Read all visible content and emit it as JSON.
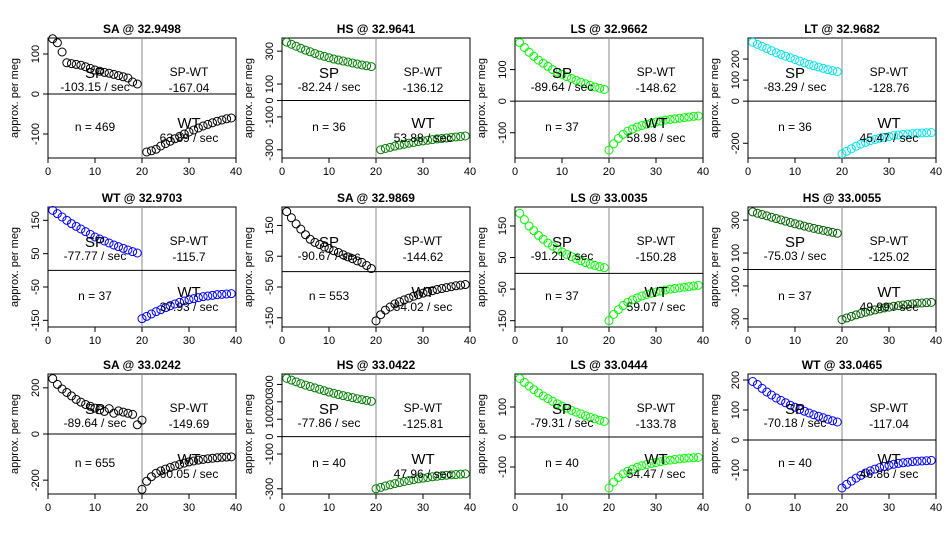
{
  "chart_data": [
    {
      "type": "scatter",
      "title": "SA @ 32.9498",
      "ylabel": "approx. per meg",
      "xlim": [
        0,
        40
      ],
      "ylim": [
        -160,
        140
      ],
      "yticks": [
        -100,
        0,
        100
      ],
      "xticks": [
        0,
        10,
        20,
        30,
        40
      ],
      "color": "#000000",
      "sp_label": "SP",
      "sp_rate": "-103.15 / sec",
      "spwt_label": "SP-WT",
      "spwt_value": "-167.04",
      "n_label": "n = 469",
      "wt_label": "WT",
      "wt_rate": "63.89 / sec",
      "sp_x": [
        1,
        2,
        3,
        4,
        5,
        6,
        7,
        8,
        9,
        10,
        11,
        12,
        13,
        14,
        15,
        16,
        17,
        18,
        19
      ],
      "sp_y": [
        138,
        128,
        105,
        78,
        76,
        74,
        72,
        68,
        64,
        60,
        57,
        54,
        52,
        49,
        46,
        43,
        40,
        30,
        25
      ],
      "wt_x": [
        21,
        22,
        23,
        24,
        25,
        26,
        27,
        28,
        29,
        30,
        31,
        32,
        33,
        34,
        35,
        36,
        37,
        38,
        39
      ],
      "wt_y": [
        -145,
        -142,
        -138,
        -130,
        -124,
        -118,
        -112,
        -106,
        -100,
        -95,
        -90,
        -85,
        -80,
        -76,
        -72,
        -68,
        -65,
        -62,
        -60
      ]
    },
    {
      "type": "scatter",
      "title": "HS @ 32.9641",
      "ylabel": "approx. per meg",
      "xlim": [
        0,
        40
      ],
      "ylim": [
        -350,
        380
      ],
      "yticks": [
        -300,
        -100,
        0,
        100,
        300
      ],
      "xticks": [
        0,
        10,
        20,
        30,
        40
      ],
      "color": "#008000",
      "sp_label": "SP",
      "sp_rate": "-82.24 / sec",
      "spwt_label": "SP-WT",
      "spwt_value": "-136.12",
      "n_label": "n = 36",
      "wt_label": "WT",
      "wt_rate": "53.88 / sec",
      "sp_x": [
        1,
        2,
        3,
        4,
        5,
        6,
        7,
        8,
        9,
        10,
        11,
        12,
        13,
        14,
        15,
        16,
        17,
        18,
        19
      ],
      "sp_y": [
        355,
        342,
        330,
        318,
        306,
        296,
        286,
        276,
        268,
        260,
        252,
        246,
        240,
        234,
        228,
        222,
        216,
        211,
        206
      ],
      "wt_x": [
        21,
        22,
        23,
        24,
        25,
        26,
        27,
        28,
        29,
        30,
        31,
        32,
        33,
        34,
        35,
        36,
        37,
        38,
        39
      ],
      "wt_y": [
        -300,
        -292,
        -285,
        -278,
        -272,
        -266,
        -260,
        -255,
        -250,
        -246,
        -242,
        -238,
        -234,
        -231,
        -228,
        -225,
        -222,
        -219,
        -216
      ]
    },
    {
      "type": "scatter",
      "title": "LS @ 32.9662",
      "ylabel": "approx. per meg",
      "xlim": [
        0,
        40
      ],
      "ylim": [
        -180,
        200
      ],
      "yticks": [
        -100,
        0,
        100
      ],
      "xticks": [
        0,
        10,
        20,
        30,
        40
      ],
      "color": "#00ff00",
      "sp_label": "SP",
      "sp_rate": "-89.64 / sec",
      "spwt_label": "SP-WT",
      "spwt_value": "-148.62",
      "n_label": "n = 37",
      "wt_label": "WT",
      "wt_rate": "58.98 / sec",
      "sp_x": [
        1,
        2,
        3,
        4,
        5,
        6,
        7,
        8,
        9,
        10,
        11,
        12,
        13,
        14,
        15,
        16,
        17,
        18,
        19
      ],
      "sp_y": [
        185,
        170,
        155,
        142,
        130,
        120,
        110,
        100,
        92,
        85,
        78,
        72,
        66,
        60,
        55,
        50,
        45,
        41,
        37
      ],
      "wt_x": [
        20,
        21,
        22,
        23,
        24,
        25,
        26,
        27,
        28,
        29,
        30,
        31,
        32,
        33,
        34,
        35,
        36,
        37,
        38,
        39
      ],
      "wt_y": [
        -155,
        -135,
        -118,
        -105,
        -95,
        -88,
        -82,
        -77,
        -73,
        -69,
        -66,
        -63,
        -60,
        -58,
        -56,
        -54,
        -52,
        -50,
        -48,
        -47
      ]
    },
    {
      "type": "scatter",
      "title": "LT @ 32.9682",
      "ylabel": "approx. per meg",
      "xlim": [
        0,
        40
      ],
      "ylim": [
        -270,
        300
      ],
      "yticks": [
        -200,
        0,
        100,
        200
      ],
      "xticks": [
        0,
        10,
        20,
        30,
        40
      ],
      "color": "#00e5ee",
      "sp_label": "SP",
      "sp_rate": "-83.29 / sec",
      "spwt_label": "SP-WT",
      "spwt_value": "-128.76",
      "n_label": "n = 36",
      "wt_label": "WT",
      "wt_rate": "45.47 / sec",
      "sp_x": [
        1,
        2,
        3,
        4,
        5,
        6,
        7,
        8,
        9,
        10,
        11,
        12,
        13,
        14,
        15,
        16,
        17,
        18,
        19
      ],
      "sp_y": [
        280,
        270,
        260,
        250,
        240,
        230,
        222,
        214,
        206,
        198,
        190,
        182,
        175,
        168,
        162,
        156,
        150,
        145,
        140
      ],
      "wt_x": [
        20,
        21,
        22,
        23,
        24,
        25,
        26,
        27,
        28,
        29,
        30,
        31,
        32,
        33,
        34,
        35,
        36,
        37,
        38,
        39
      ],
      "wt_y": [
        -250,
        -238,
        -226,
        -214,
        -204,
        -196,
        -188,
        -182,
        -176,
        -172,
        -168,
        -164,
        -161,
        -158,
        -156,
        -154,
        -152,
        -151,
        -150,
        -149
      ]
    },
    {
      "type": "scatter",
      "title": "WT @ 32.9703",
      "ylabel": "approx. per meg",
      "xlim": [
        0,
        40
      ],
      "ylim": [
        -170,
        190
      ],
      "yticks": [
        -150,
        -50,
        50,
        150
      ],
      "xticks": [
        0,
        10,
        20,
        30,
        40
      ],
      "color": "#0000ff",
      "sp_label": "SP",
      "sp_rate": "-77.77 / sec",
      "spwt_label": "SP-WT",
      "spwt_value": "-115.7",
      "n_label": "n = 37",
      "wt_label": "WT",
      "wt_rate": "37.93 / sec",
      "sp_x": [
        1,
        2,
        3,
        4,
        5,
        6,
        7,
        8,
        9,
        10,
        11,
        12,
        13,
        14,
        15,
        16,
        17,
        18,
        19
      ],
      "sp_y": [
        180,
        170,
        160,
        150,
        140,
        132,
        124,
        116,
        108,
        100,
        94,
        88,
        82,
        76,
        71,
        66,
        61,
        56,
        52
      ],
      "wt_x": [
        20,
        21,
        22,
        23,
        24,
        25,
        26,
        27,
        28,
        29,
        30,
        31,
        32,
        33,
        34,
        35,
        36,
        37,
        38,
        39
      ],
      "wt_y": [
        -145,
        -138,
        -131,
        -124,
        -118,
        -112,
        -106,
        -101,
        -96,
        -92,
        -88,
        -85,
        -82,
        -79,
        -77,
        -75,
        -73,
        -72,
        -71,
        -70
      ]
    },
    {
      "type": "scatter",
      "title": "SA @ 32.9869",
      "ylabel": "approx. per meg",
      "xlim": [
        0,
        40
      ],
      "ylim": [
        -180,
        210
      ],
      "yticks": [
        -150,
        -50,
        50,
        150
      ],
      "xticks": [
        0,
        10,
        20,
        30,
        40
      ],
      "color": "#000000",
      "sp_label": "SP",
      "sp_rate": "-90.67 / sec",
      "spwt_label": "SP-WT",
      "spwt_value": "-144.62",
      "n_label": "n = 553",
      "wt_label": "WT",
      "wt_rate": "54.02 / sec",
      "sp_x": [
        1,
        2,
        3,
        4,
        5,
        6,
        7,
        8,
        9,
        10,
        11,
        12,
        13,
        14,
        15,
        16,
        17,
        18,
        19
      ],
      "sp_y": [
        195,
        175,
        155,
        138,
        120,
        105,
        95,
        88,
        80,
        75,
        68,
        62,
        55,
        48,
        42,
        35,
        30,
        20,
        10
      ],
      "wt_x": [
        20,
        21,
        22,
        23,
        24,
        25,
        26,
        27,
        28,
        29,
        30,
        31,
        32,
        33,
        34,
        35,
        36,
        37,
        38,
        39
      ],
      "wt_y": [
        -160,
        -140,
        -125,
        -115,
        -105,
        -98,
        -92,
        -86,
        -80,
        -75,
        -70,
        -66,
        -62,
        -58,
        -55,
        -52,
        -49,
        -46,
        -44,
        -42
      ]
    },
    {
      "type": "scatter",
      "title": "LS @ 33.0035",
      "ylabel": "approx. per meg",
      "xlim": [
        0,
        40
      ],
      "ylim": [
        -170,
        210
      ],
      "yticks": [
        -150,
        -50,
        50,
        150
      ],
      "xticks": [
        0,
        10,
        20,
        30,
        40
      ],
      "color": "#00ff00",
      "sp_label": "SP",
      "sp_rate": "-91.21 / sec",
      "spwt_label": "SP-WT",
      "spwt_value": "-150.28",
      "n_label": "n = 37",
      "wt_label": "WT",
      "wt_rate": "59.07 / sec",
      "sp_x": [
        1,
        2,
        3,
        4,
        5,
        6,
        7,
        8,
        9,
        10,
        11,
        12,
        13,
        14,
        15,
        16,
        17,
        18,
        19
      ],
      "sp_y": [
        190,
        170,
        150,
        135,
        120,
        108,
        96,
        86,
        77,
        68,
        60,
        53,
        46,
        40,
        34,
        29,
        25,
        21,
        18
      ],
      "wt_x": [
        20,
        21,
        22,
        23,
        24,
        25,
        26,
        27,
        28,
        29,
        30,
        31,
        32,
        33,
        34,
        35,
        36,
        37,
        38,
        39
      ],
      "wt_y": [
        -150,
        -130,
        -115,
        -102,
        -92,
        -84,
        -78,
        -72,
        -67,
        -63,
        -59,
        -56,
        -53,
        -50,
        -48,
        -46,
        -44,
        -42,
        -40,
        -38
      ]
    },
    {
      "type": "scatter",
      "title": "HS @ 33.0055",
      "ylabel": "approx. per meg",
      "xlim": [
        0,
        40
      ],
      "ylim": [
        -350,
        380
      ],
      "yticks": [
        -300,
        -100,
        0,
        100,
        300
      ],
      "xticks": [
        0,
        10,
        20,
        30,
        40
      ],
      "color": "#006400",
      "sp_label": "SP",
      "sp_rate": "-75.03 / sec",
      "spwt_label": "SP-WT",
      "spwt_value": "-125.02",
      "n_label": "n = 37",
      "wt_label": "WT",
      "wt_rate": "49.99 / sec",
      "sp_x": [
        1,
        2,
        3,
        4,
        5,
        6,
        7,
        8,
        9,
        10,
        11,
        12,
        13,
        14,
        15,
        16,
        17,
        18,
        19
      ],
      "sp_y": [
        350,
        342,
        334,
        326,
        318,
        310,
        302,
        294,
        286,
        278,
        271,
        264,
        257,
        250,
        244,
        238,
        232,
        226,
        220
      ],
      "wt_x": [
        20,
        21,
        22,
        23,
        24,
        25,
        26,
        27,
        28,
        29,
        30,
        31,
        32,
        33,
        34,
        35,
        36,
        37,
        38,
        39
      ],
      "wt_y": [
        -305,
        -295,
        -285,
        -276,
        -268,
        -260,
        -253,
        -246,
        -240,
        -234,
        -229,
        -224,
        -220,
        -216,
        -212,
        -209,
        -206,
        -204,
        -202,
        -200
      ]
    },
    {
      "type": "scatter",
      "title": "SA @ 33.0242",
      "ylabel": "approx. per meg",
      "xlim": [
        0,
        40
      ],
      "ylim": [
        -260,
        260
      ],
      "yticks": [
        -200,
        0,
        200
      ],
      "xticks": [
        0,
        10,
        20,
        30,
        40
      ],
      "color": "#000000",
      "sp_label": "SP",
      "sp_rate": "-89.64 / sec",
      "spwt_label": "SP-WT",
      "spwt_value": "-149.69",
      "n_label": "n = 655",
      "wt_label": "WT",
      "wt_rate": "60.05 / sec",
      "sp_x": [
        1,
        2,
        3,
        4,
        5,
        6,
        7,
        8,
        9,
        10,
        11,
        12,
        13,
        14,
        15,
        16,
        17,
        18,
        19,
        20
      ],
      "sp_y": [
        240,
        215,
        195,
        180,
        165,
        150,
        138,
        128,
        120,
        112,
        105,
        98,
        110,
        90,
        100,
        95,
        90,
        85,
        40,
        60
      ],
      "wt_x": [
        20,
        21,
        22,
        23,
        24,
        25,
        26,
        27,
        28,
        29,
        30,
        31,
        32,
        33,
        34,
        35,
        36,
        37,
        38,
        39
      ],
      "wt_y": [
        -240,
        -205,
        -185,
        -170,
        -160,
        -152,
        -145,
        -138,
        -132,
        -126,
        -121,
        -117,
        -113,
        -110,
        -107,
        -105,
        -103,
        -101,
        -100,
        -99
      ]
    },
    {
      "type": "scatter",
      "title": "HS @ 33.0422",
      "ylabel": "approx. per meg",
      "xlim": [
        0,
        40
      ],
      "ylim": [
        -330,
        360
      ],
      "yticks": [
        -300,
        -100,
        0,
        100,
        200,
        300
      ],
      "xticks": [
        0,
        10,
        20,
        30,
        40
      ],
      "color": "#008000",
      "sp_label": "SP",
      "sp_rate": "-77.86 / sec",
      "spwt_label": "SP-WT",
      "spwt_value": "-125.81",
      "n_label": "n = 40",
      "wt_label": "WT",
      "wt_rate": "47.96 / sec",
      "sp_x": [
        1,
        2,
        3,
        4,
        5,
        6,
        7,
        8,
        9,
        10,
        11,
        12,
        13,
        14,
        15,
        16,
        17,
        18,
        19
      ],
      "sp_y": [
        335,
        325,
        315,
        305,
        296,
        288,
        280,
        272,
        264,
        256,
        249,
        242,
        236,
        230,
        224,
        218,
        213,
        208,
        203
      ],
      "wt_x": [
        20,
        21,
        22,
        23,
        24,
        25,
        26,
        27,
        28,
        29,
        30,
        31,
        32,
        33,
        34,
        35,
        36,
        37,
        38,
        39
      ],
      "wt_y": [
        -300,
        -292,
        -284,
        -277,
        -270,
        -264,
        -258,
        -253,
        -248,
        -243,
        -239,
        -235,
        -231,
        -228,
        -225,
        -222,
        -220,
        -218,
        -216,
        -214
      ]
    },
    {
      "type": "scatter",
      "title": "LS @ 33.0444",
      "ylabel": "approx. per meg",
      "xlim": [
        0,
        40
      ],
      "ylim": [
        -190,
        210
      ],
      "yticks": [
        -100,
        0,
        100
      ],
      "xticks": [
        0,
        10,
        20,
        30,
        40
      ],
      "color": "#00ff00",
      "sp_label": "SP",
      "sp_rate": "-79.31 / sec",
      "spwt_label": "SP-WT",
      "spwt_value": "-133.78",
      "n_label": "n = 40",
      "wt_label": "WT",
      "wt_rate": "54.47 / sec",
      "sp_x": [
        1,
        2,
        3,
        4,
        5,
        6,
        7,
        8,
        9,
        10,
        11,
        12,
        13,
        14,
        15,
        16,
        17,
        18,
        19
      ],
      "sp_y": [
        195,
        182,
        170,
        158,
        147,
        137,
        128,
        119,
        111,
        103,
        96,
        89,
        83,
        77,
        71,
        66,
        61,
        56,
        52
      ],
      "wt_x": [
        20,
        21,
        22,
        23,
        24,
        25,
        26,
        27,
        28,
        29,
        30,
        31,
        32,
        33,
        34,
        35,
        36,
        37,
        38,
        39
      ],
      "wt_y": [
        -170,
        -150,
        -135,
        -123,
        -114,
        -107,
        -101,
        -96,
        -92,
        -88,
        -85,
        -82,
        -79,
        -77,
        -75,
        -73,
        -71,
        -70,
        -69,
        -68
      ]
    },
    {
      "type": "scatter",
      "title": "WT @ 33.0465",
      "ylabel": "approx. per meg",
      "xlim": [
        0,
        40
      ],
      "ylim": [
        -180,
        220
      ],
      "yticks": [
        -100,
        0,
        100,
        200
      ],
      "xticks": [
        0,
        10,
        20,
        30,
        40
      ],
      "color": "#0000ff",
      "sp_label": "SP",
      "sp_rate": "-70.18 / sec",
      "spwt_label": "SP-WT",
      "spwt_value": "-117.04",
      "n_label": "n = 40",
      "wt_label": "WT",
      "wt_rate": "46.86 / sec",
      "sp_x": [
        1,
        2,
        3,
        4,
        5,
        6,
        7,
        8,
        9,
        10,
        11,
        12,
        13,
        14,
        15,
        16,
        17,
        18,
        19
      ],
      "sp_y": [
        195,
        185,
        172,
        160,
        150,
        140,
        132,
        124,
        116,
        109,
        102,
        96,
        90,
        84,
        79,
        74,
        69,
        64,
        60
      ],
      "wt_x": [
        20,
        21,
        22,
        23,
        24,
        25,
        26,
        27,
        28,
        29,
        30,
        31,
        32,
        33,
        34,
        35,
        36,
        37,
        38,
        39
      ],
      "wt_y": [
        -160,
        -148,
        -137,
        -127,
        -118,
        -110,
        -103,
        -97,
        -92,
        -88,
        -84,
        -81,
        -78,
        -76,
        -74,
        -72,
        -71,
        -70,
        -69,
        -68
      ]
    }
  ]
}
